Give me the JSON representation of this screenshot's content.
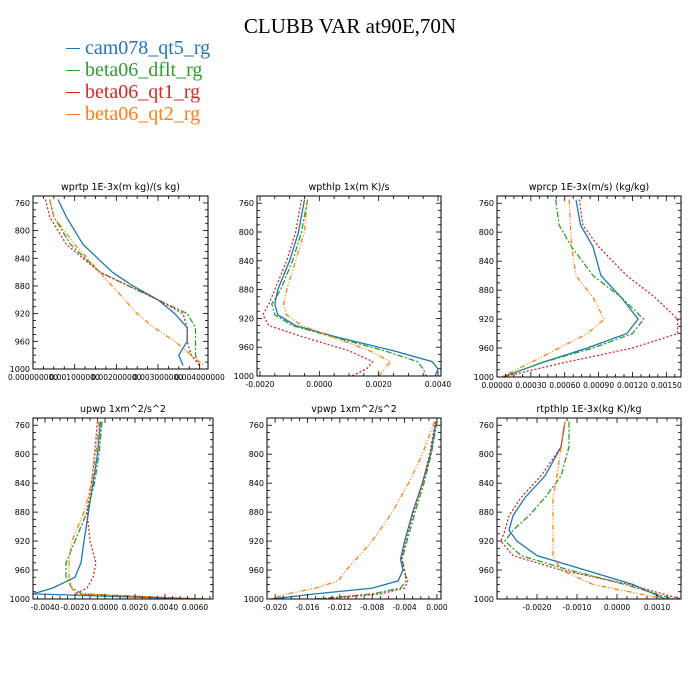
{
  "title": "CLUBB VAR at90E,70N",
  "legend": [
    {
      "label": "cam078_qt5_rg",
      "color": "#1f77b4"
    },
    {
      "label": "beta06_dflt_rg",
      "color": "#2ca02c"
    },
    {
      "label": "beta06_qt1_rg",
      "color": "#d62728"
    },
    {
      "label": "beta06_qt2_rg",
      "color": "#ff7f0e"
    }
  ],
  "chart_data": [
    {
      "type": "line",
      "title": "wprtp  1E-3x(m kg)/(s kg)",
      "xlim": [
        0.0,
        0.0042
      ],
      "xticks": [
        "0.000000000",
        "0.001000000",
        "0.002000000",
        "0.003000000",
        "0.004000000"
      ],
      "xtick_values": [
        0.0,
        0.001,
        0.002,
        0.003,
        0.004
      ],
      "ylim": [
        1000,
        750
      ],
      "yticks": [
        760,
        800,
        840,
        880,
        920,
        960,
        1000
      ],
      "series": [
        {
          "name": "cam078_qt5_rg",
          "y": [
            755,
            780,
            820,
            860,
            880,
            900,
            920,
            940,
            960,
            980,
            995
          ],
          "x": [
            0.0006,
            0.0008,
            0.0012,
            0.0019,
            0.0024,
            0.003,
            0.0034,
            0.0037,
            0.0037,
            0.0035,
            0.0036
          ]
        },
        {
          "name": "beta06_dflt_rg",
          "y": [
            755,
            780,
            820,
            860,
            880,
            900,
            920,
            940,
            960,
            980,
            995
          ],
          "x": [
            0.0004,
            0.0005,
            0.0009,
            0.0016,
            0.0023,
            0.003,
            0.0037,
            0.0039,
            0.0039,
            0.0039,
            0.004
          ]
        },
        {
          "name": "beta06_qt1_rg",
          "y": [
            755,
            780,
            820,
            860,
            880,
            900,
            920,
            940,
            960,
            980,
            995
          ],
          "x": [
            0.0003,
            0.0004,
            0.0008,
            0.0016,
            0.0023,
            0.003,
            0.0036,
            0.0037,
            0.0037,
            0.0038,
            0.004
          ]
        },
        {
          "name": "beta06_qt2_rg",
          "y": [
            755,
            780,
            820,
            860,
            880,
            900,
            920,
            940,
            960,
            980,
            995
          ],
          "x": [
            0.0004,
            0.0005,
            0.001,
            0.0016,
            0.0019,
            0.0022,
            0.0025,
            0.0029,
            0.0034,
            0.0038,
            0.0041
          ]
        }
      ]
    },
    {
      "type": "line",
      "title": "wpthlp  1x(m K)/s",
      "xlim": [
        -0.0021,
        0.0041
      ],
      "xticks": [
        "-0.0020",
        "0.0000",
        "0.0020",
        "0.0040"
      ],
      "xtick_values": [
        -0.002,
        0.0,
        0.002,
        0.004
      ],
      "ylim": [
        1000,
        750
      ],
      "yticks": [
        760,
        800,
        840,
        880,
        920,
        960,
        1000
      ],
      "series": [
        {
          "name": "cam078_qt5_rg",
          "y": [
            755,
            800,
            840,
            880,
            900,
            915,
            930,
            945,
            965,
            980,
            990,
            1000
          ],
          "x": [
            -0.0005,
            -0.0007,
            -0.001,
            -0.0014,
            -0.0015,
            -0.0014,
            -0.0008,
            0.0005,
            0.0025,
            0.0038,
            0.004,
            0.0039
          ]
        },
        {
          "name": "beta06_dflt_rg",
          "y": [
            755,
            800,
            840,
            880,
            900,
            915,
            930,
            945,
            965,
            980,
            990,
            1000
          ],
          "x": [
            -0.0004,
            -0.0006,
            -0.0009,
            -0.0013,
            -0.0016,
            -0.0015,
            -0.0009,
            0.0004,
            0.0022,
            0.0033,
            0.0035,
            0.0036
          ]
        },
        {
          "name": "beta06_qt1_rg",
          "y": [
            755,
            800,
            840,
            880,
            900,
            915,
            930,
            945,
            965,
            980,
            990,
            1000
          ],
          "x": [
            -0.0006,
            -0.0008,
            -0.0011,
            -0.0015,
            -0.0017,
            -0.0019,
            -0.0017,
            -0.0006,
            0.001,
            0.0018,
            0.0016,
            0.0011
          ]
        },
        {
          "name": "beta06_qt2_rg",
          "y": [
            755,
            800,
            840,
            880,
            900,
            915,
            930,
            945,
            965,
            980,
            990,
            1000
          ],
          "x": [
            -0.0004,
            -0.0005,
            -0.0008,
            -0.0011,
            -0.0012,
            -0.0011,
            -0.0006,
            0.0004,
            0.0017,
            0.0024,
            0.0022,
            0.002
          ]
        }
      ]
    },
    {
      "type": "line",
      "title": "wprcp  1E-3x(m/s) (kg/kg)",
      "xlim": [
        0.0,
        0.00163
      ],
      "xticks": [
        "0.00000",
        "0.00030",
        "0.00060",
        "0.00090",
        "0.00120",
        "0.00150"
      ],
      "xtick_values": [
        0.0,
        0.0003,
        0.0006,
        0.0009,
        0.0012,
        0.0015
      ],
      "ylim": [
        1000,
        750
      ],
      "yticks": [
        760,
        800,
        840,
        880,
        920,
        960,
        1000
      ],
      "series": [
        {
          "name": "cam078_qt5_rg",
          "y": [
            755,
            790,
            820,
            860,
            890,
            920,
            940,
            960,
            980,
            1000
          ],
          "x": [
            0.0007,
            0.00074,
            0.00085,
            0.00092,
            0.0011,
            0.00125,
            0.00115,
            0.0008,
            0.0004,
            5e-05
          ]
        },
        {
          "name": "beta06_dflt_rg",
          "y": [
            755,
            790,
            820,
            860,
            890,
            920,
            940,
            960,
            980,
            1000
          ],
          "x": [
            0.00052,
            0.00055,
            0.00066,
            0.00085,
            0.0011,
            0.0013,
            0.0012,
            0.00085,
            0.0004,
            5e-05
          ]
        },
        {
          "name": "beta06_qt1_rg",
          "y": [
            755,
            790,
            820,
            860,
            890,
            920,
            940,
            960,
            980,
            1000
          ],
          "x": [
            0.00073,
            0.00076,
            0.0009,
            0.00115,
            0.0014,
            0.0016,
            0.0016,
            0.0012,
            0.0006,
            5e-05
          ]
        },
        {
          "name": "beta06_qt2_rg",
          "y": [
            755,
            790,
            820,
            860,
            890,
            920,
            940,
            960,
            980,
            1000
          ],
          "x": [
            0.00064,
            0.00065,
            0.00066,
            0.0007,
            0.00085,
            0.00095,
            0.0008,
            0.00055,
            0.0003,
            4e-05
          ]
        }
      ]
    },
    {
      "type": "line",
      "title": "upwp  1xm^2/s^2",
      "xlim": [
        -0.0048,
        0.0072
      ],
      "xticks": [
        "-0.0040",
        "-0.0020",
        "0.0000",
        "0.0020",
        "0.0040",
        "0.0060"
      ],
      "xtick_values": [
        -0.004,
        -0.002,
        0.0,
        0.002,
        0.004,
        0.006
      ],
      "ylim": [
        1000,
        750
      ],
      "yticks": [
        760,
        800,
        840,
        880,
        920,
        960,
        1000
      ],
      "series": [
        {
          "name": "cam078_qt5_rg",
          "y": [
            755,
            800,
            840,
            880,
            920,
            950,
            970,
            985,
            993,
            1000
          ],
          "x": [
            -0.0003,
            -0.0005,
            -0.0008,
            -0.0011,
            -0.0014,
            -0.0016,
            -0.002,
            -0.0035,
            -0.0048,
            0.006
          ]
        },
        {
          "name": "beta06_dflt_rg",
          "y": [
            755,
            800,
            840,
            880,
            920,
            950,
            970,
            985,
            993,
            1000
          ],
          "x": [
            -0.0002,
            -0.0004,
            -0.0007,
            -0.0012,
            -0.002,
            -0.0026,
            -0.0026,
            -0.0022,
            -0.0015,
            0.006
          ]
        },
        {
          "name": "beta06_qt1_rg",
          "y": [
            755,
            800,
            840,
            880,
            920,
            950,
            970,
            985,
            993,
            1000
          ],
          "x": [
            -0.0005,
            -0.0007,
            -0.0009,
            -0.0012,
            -0.001,
            -0.0006,
            -0.0008,
            -0.0012,
            -0.002,
            0.0062
          ]
        },
        {
          "name": "beta06_qt2_rg",
          "y": [
            755,
            800,
            840,
            880,
            920,
            950,
            970,
            985,
            993,
            1000
          ],
          "x": [
            -0.0004,
            -0.0006,
            -0.0009,
            -0.0014,
            -0.0022,
            -0.0024,
            -0.0024,
            -0.0022,
            -0.002,
            0.007
          ]
        }
      ]
    },
    {
      "type": "line",
      "title": "vpwp  1xm^2/s^2",
      "xlim": [
        -0.021,
        0.0005
      ],
      "xticks": [
        "-0.020",
        "-0.016",
        "-0.012",
        "-0.008",
        "-0.004",
        "0.000"
      ],
      "xtick_values": [
        -0.02,
        -0.016,
        -0.012,
        -0.008,
        -0.004,
        0.0
      ],
      "ylim": [
        1000,
        750
      ],
      "yticks": [
        760,
        800,
        840,
        880,
        920,
        960,
        1000
      ],
      "series": [
        {
          "name": "cam078_qt5_rg",
          "y": [
            755,
            800,
            840,
            880,
            920,
            945,
            960,
            975,
            985,
            993,
            1000
          ],
          "x": [
            -0.0001,
            -0.0008,
            -0.0018,
            -0.003,
            -0.004,
            -0.0045,
            -0.0042,
            -0.0048,
            -0.008,
            -0.015,
            -0.0205
          ]
        },
        {
          "name": "beta06_dflt_rg",
          "y": [
            755,
            800,
            840,
            880,
            920,
            945,
            960,
            975,
            985,
            993,
            1000
          ],
          "x": [
            0.0,
            -0.0007,
            -0.0016,
            -0.0027,
            -0.0037,
            -0.0043,
            -0.004,
            -0.0038,
            -0.0045,
            -0.008,
            -0.015
          ]
        },
        {
          "name": "beta06_qt1_rg",
          "y": [
            755,
            800,
            840,
            880,
            920,
            945,
            960,
            975,
            985,
            993,
            1000
          ],
          "x": [
            -0.0002,
            -0.0009,
            -0.0018,
            -0.0029,
            -0.0039,
            -0.0044,
            -0.0041,
            -0.0036,
            -0.004,
            -0.007,
            -0.014
          ]
        },
        {
          "name": "beta06_qt2_rg",
          "y": [
            755,
            800,
            840,
            880,
            920,
            945,
            960,
            975,
            985,
            993,
            1000
          ],
          "x": [
            -0.0003,
            -0.0018,
            -0.0035,
            -0.0055,
            -0.008,
            -0.01,
            -0.0112,
            -0.0122,
            -0.015,
            -0.0185,
            -0.0205
          ]
        }
      ]
    },
    {
      "type": "line",
      "title": "rtpthlp  1E-3x(kg K)/kg",
      "xlim": [
        -0.003,
        0.0016
      ],
      "xticks": [
        "-0.0020",
        "-0.0010",
        "0.0000",
        "0.0010"
      ],
      "xtick_values": [
        -0.002,
        -0.001,
        0.0,
        0.001
      ],
      "ylim": [
        1000,
        750
      ],
      "yticks": [
        760,
        800,
        840,
        880,
        920,
        960,
        1000
      ],
      "series": [
        {
          "name": "cam078_qt5_rg",
          "y": [
            755,
            790,
            830,
            860,
            885,
            905,
            920,
            940,
            960,
            980,
            1000
          ],
          "x": [
            -0.0013,
            -0.0014,
            -0.0018,
            -0.0023,
            -0.0026,
            -0.0027,
            -0.0025,
            -0.002,
            -0.0008,
            0.0004,
            0.0012
          ]
        },
        {
          "name": "beta06_dflt_rg",
          "y": [
            755,
            790,
            830,
            860,
            885,
            905,
            920,
            940,
            960,
            980,
            1000
          ],
          "x": [
            -0.0012,
            -0.0012,
            -0.0014,
            -0.0018,
            -0.0022,
            -0.0026,
            -0.0028,
            -0.0024,
            -0.0012,
            0.0002,
            0.0014
          ]
        },
        {
          "name": "beta06_qt1_rg",
          "y": [
            755,
            790,
            830,
            860,
            885,
            905,
            920,
            940,
            960,
            980,
            1000
          ],
          "x": [
            -0.0013,
            -0.0014,
            -0.0019,
            -0.0024,
            -0.0027,
            -0.0028,
            -0.0029,
            -0.0026,
            -0.0014,
            0.0003,
            0.0016
          ]
        },
        {
          "name": "beta06_qt2_rg",
          "y": [
            755,
            790,
            830,
            860,
            885,
            905,
            920,
            940,
            960,
            980,
            1000
          ],
          "x": [
            -0.0013,
            -0.0014,
            -0.0015,
            -0.0016,
            -0.0016,
            -0.0016,
            -0.0016,
            -0.0016,
            -0.0014,
            -0.0006,
            0.0012
          ]
        }
      ]
    }
  ]
}
